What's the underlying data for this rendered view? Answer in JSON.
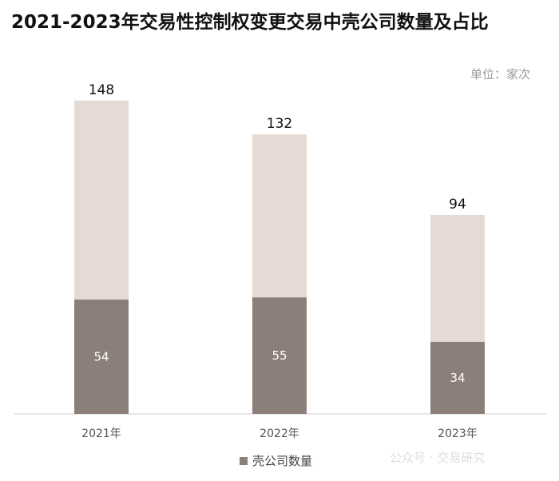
{
  "title": "2021-2023年交易性控制权变更交易中壳公司数量及占比",
  "unit": "单位：家次",
  "watermark": "公众号 · 交易研究",
  "colors": {
    "total": "#e6dbd4",
    "shell": "#8c7e78",
    "axis": "#cccccc"
  },
  "chart_data": {
    "type": "bar",
    "stacked": "overlay",
    "title": "2021-2023年交易性控制权变更交易中壳公司数量及占比",
    "unit": "单位：家次",
    "categories": [
      "2021年",
      "2022年",
      "2023年"
    ],
    "series": [
      {
        "values": [
          148,
          132,
          94
        ]
      },
      {
        "name": "壳公司数量",
        "values": [
          54,
          55,
          34
        ]
      }
    ],
    "legend": {
      "position": "bottom",
      "entries": [
        "壳公司数量"
      ]
    },
    "grid": false
  }
}
